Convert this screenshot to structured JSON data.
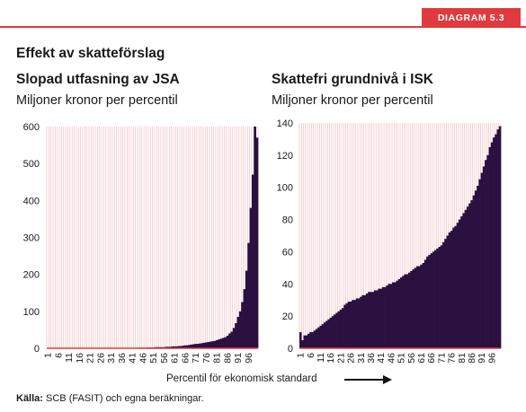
{
  "header": {
    "tag": "DIAGRAM 5.3",
    "heading": "Effekt av skatteförslag"
  },
  "footer": {
    "source_label": "Källa:",
    "source_text": "SCB (FASIT) och egna beräkningar."
  },
  "x_caption": "Percentil för ekonomisk standard",
  "colors": {
    "bars": "#2b1040",
    "accent": "#e03a3e",
    "grid": "#f3b1b4"
  },
  "chart_data": [
    {
      "type": "bar",
      "title": "Slopad utfasning av JSA",
      "subtitle": "Miljoner kronor per percentil",
      "ylim": [
        0,
        600
      ],
      "yticks": [
        0,
        100,
        200,
        300,
        400,
        500,
        600
      ],
      "xticks": [
        "1",
        "6",
        "11",
        "16",
        "21",
        "26",
        "31",
        "36",
        "41",
        "46",
        "51",
        "56",
        "61",
        "66",
        "71",
        "76",
        "81",
        "86",
        "91",
        "96"
      ],
      "categories": [
        1,
        2,
        3,
        4,
        5,
        6,
        7,
        8,
        9,
        10,
        11,
        12,
        13,
        14,
        15,
        16,
        17,
        18,
        19,
        20,
        21,
        22,
        23,
        24,
        25,
        26,
        27,
        28,
        29,
        30,
        31,
        32,
        33,
        34,
        35,
        36,
        37,
        38,
        39,
        40,
        41,
        42,
        43,
        44,
        45,
        46,
        47,
        48,
        49,
        50,
        51,
        52,
        53,
        54,
        55,
        56,
        57,
        58,
        59,
        60,
        61,
        62,
        63,
        64,
        65,
        66,
        67,
        68,
        69,
        70,
        71,
        72,
        73,
        74,
        75,
        76,
        77,
        78,
        79,
        80,
        81,
        82,
        83,
        84,
        85,
        86,
        87,
        88,
        89,
        90,
        91,
        92,
        93,
        94,
        95,
        96,
        97,
        98,
        99,
        100
      ],
      "values": [
        0.3,
        0.3,
        0.3,
        0.3,
        0.3,
        0.3,
        0.3,
        0.3,
        0.3,
        0.3,
        0.3,
        0.3,
        0.3,
        0.3,
        0.3,
        0.3,
        0.3,
        0.3,
        0.3,
        0.3,
        0.3,
        0.3,
        0.3,
        0.3,
        0.3,
        0.3,
        0.3,
        0.5,
        0.5,
        0.5,
        0.5,
        0.5,
        0.5,
        0.5,
        0.5,
        1,
        1,
        1,
        1,
        1,
        1,
        1,
        1,
        1.5,
        1.5,
        1.5,
        1.5,
        2,
        2,
        2,
        2,
        3,
        3,
        3,
        3,
        3,
        4,
        4,
        4,
        5,
        5,
        5,
        6,
        6,
        7,
        8,
        8,
        9,
        10,
        11,
        12,
        12,
        13,
        14,
        15,
        16,
        17,
        18,
        19,
        20,
        22,
        24,
        26,
        28,
        30,
        34,
        40,
        45,
        55,
        68,
        85,
        100,
        125,
        160,
        210,
        285,
        380,
        470,
        600,
        570
      ],
      "grid": true
    },
    {
      "type": "bar",
      "title": "Skattefri grundnivå i ISK",
      "subtitle": "Miljoner kronor per percentil",
      "ylim": [
        0,
        140
      ],
      "yticks": [
        0,
        20,
        40,
        60,
        80,
        100,
        120,
        140
      ],
      "xticks": [
        "1",
        "6",
        "11",
        "16",
        "21",
        "26",
        "31",
        "36",
        "41",
        "46",
        "51",
        "56",
        "61",
        "66",
        "71",
        "76",
        "81",
        "86",
        "91",
        "96"
      ],
      "categories": [
        1,
        2,
        3,
        4,
        5,
        6,
        7,
        8,
        9,
        10,
        11,
        12,
        13,
        14,
        15,
        16,
        17,
        18,
        19,
        20,
        21,
        22,
        23,
        24,
        25,
        26,
        27,
        28,
        29,
        30,
        31,
        32,
        33,
        34,
        35,
        36,
        37,
        38,
        39,
        40,
        41,
        42,
        43,
        44,
        45,
        46,
        47,
        48,
        49,
        50,
        51,
        52,
        53,
        54,
        55,
        56,
        57,
        58,
        59,
        60,
        61,
        62,
        63,
        64,
        65,
        66,
        67,
        68,
        69,
        70,
        71,
        72,
        73,
        74,
        75,
        76,
        77,
        78,
        79,
        80,
        81,
        82,
        83,
        84,
        85,
        86,
        87,
        88,
        89,
        90,
        91,
        92,
        93,
        94,
        95,
        96,
        97,
        98,
        99,
        100
      ],
      "values": [
        10,
        5,
        8,
        8,
        9,
        10,
        10,
        11,
        12,
        13,
        14,
        15,
        16,
        17,
        18,
        19,
        20,
        21,
        22,
        23,
        24,
        25,
        27,
        28,
        29,
        29,
        30,
        30,
        31,
        31,
        32,
        33,
        33,
        34,
        35,
        35,
        35,
        36,
        36,
        37,
        37,
        38,
        38,
        39,
        40,
        40,
        41,
        41,
        42,
        43,
        44,
        45,
        46,
        46,
        47,
        48,
        49,
        50,
        51,
        51,
        52,
        53,
        55,
        57,
        58,
        59,
        60,
        61,
        62,
        63,
        64,
        66,
        68,
        70,
        72,
        73,
        75,
        76,
        78,
        80,
        82,
        84,
        86,
        88,
        90,
        92,
        95,
        98,
        101,
        105,
        109,
        113,
        117,
        120,
        125,
        128,
        131,
        133,
        136,
        138
      ],
      "grid": true
    }
  ]
}
